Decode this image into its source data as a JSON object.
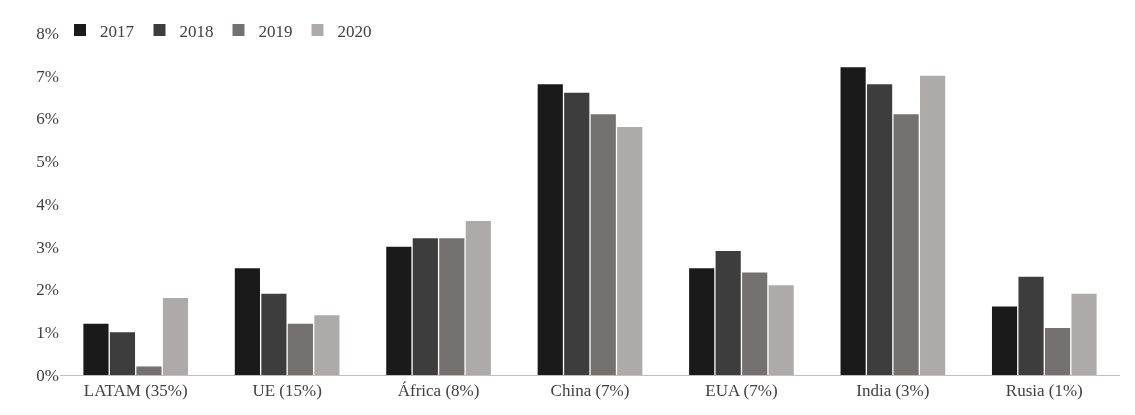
{
  "chart_data": {
    "type": "bar",
    "categories": [
      "LATAM (35%)",
      "UE (15%)",
      "África (8%)",
      "China (7%)",
      "EUA (7%)",
      "India (3%)",
      "Rusia (1%)"
    ],
    "series": [
      {
        "name": "2017",
        "color": "#1a1a1a",
        "values": [
          1.2,
          2.5,
          3.0,
          6.8,
          2.5,
          7.2,
          1.6
        ]
      },
      {
        "name": "2018",
        "color": "#3d3d3d",
        "values": [
          1.0,
          1.9,
          3.2,
          6.6,
          2.9,
          6.8,
          2.3
        ]
      },
      {
        "name": "2019",
        "color": "#767171",
        "values": [
          0.2,
          1.2,
          3.2,
          6.1,
          2.4,
          6.1,
          1.1
        ]
      },
      {
        "name": "2020",
        "color": "#aeaaaa",
        "values": [
          1.8,
          1.4,
          3.6,
          5.8,
          2.1,
          7.0,
          1.9
        ]
      }
    ],
    "ylim": [
      0,
      8
    ],
    "yticks": [
      {
        "value": 0,
        "label": "0%"
      },
      {
        "value": 1,
        "label": "1%"
      },
      {
        "value": 2,
        "label": "2%"
      },
      {
        "value": 3,
        "label": "3%"
      },
      {
        "value": 4,
        "label": "4%"
      },
      {
        "value": 5,
        "label": "5%"
      },
      {
        "value": 6,
        "label": "6%"
      },
      {
        "value": 7,
        "label": "7%"
      },
      {
        "value": 8,
        "label": "8%"
      }
    ],
    "legend": "top left"
  }
}
